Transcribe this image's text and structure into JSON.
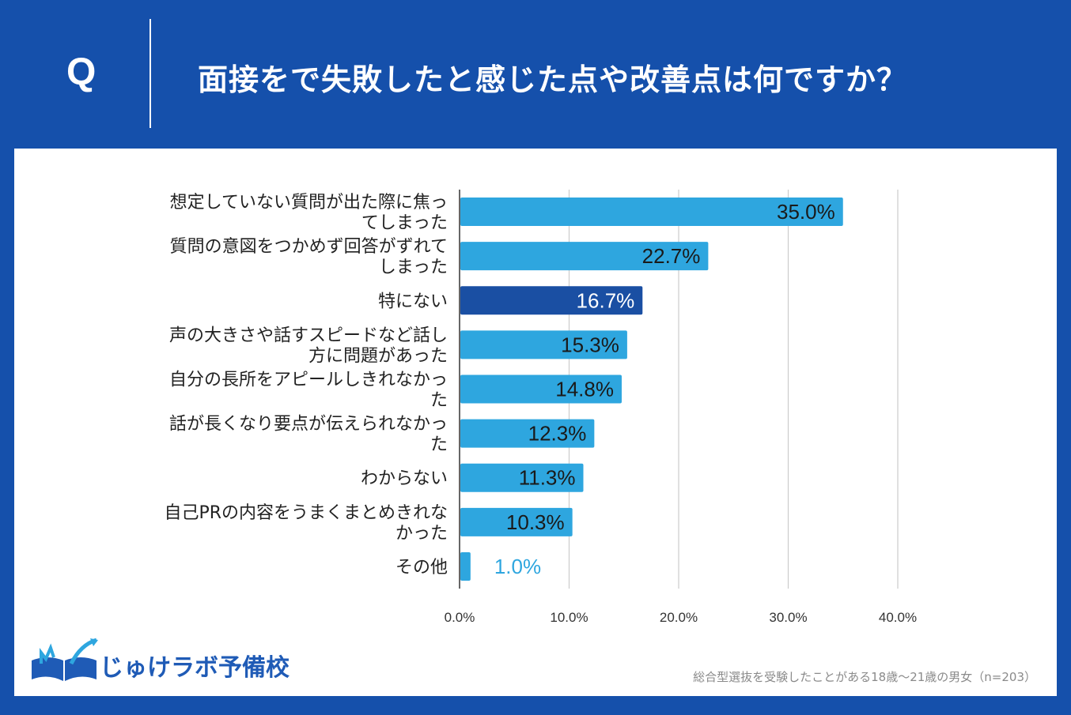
{
  "header": {
    "q_letter": "Q",
    "question": "面接をで失敗したと感じた点や改善点は何ですか？"
  },
  "colors": {
    "background": "#1550ab",
    "bar": "#2ea6df",
    "bar_highlight": "#1a4fa3",
    "outside_label": "#2ea6df"
  },
  "chart_data": {
    "type": "bar",
    "orientation": "horizontal",
    "categories": [
      [
        "想定していない質問が出た際に焦っ",
        "てしまった"
      ],
      [
        "質問の意図をつかめず回答がずれて",
        "しまった"
      ],
      [
        "特にない"
      ],
      [
        "声の大きさや話すスピードなど話し",
        "方に問題があった"
      ],
      [
        "自分の長所をアピールしきれなかっ",
        "た"
      ],
      [
        "話が長くなり要点が伝えられなかっ",
        "た"
      ],
      [
        "わからない"
      ],
      [
        "自己PRの内容をうまくまとめきれな",
        "かった"
      ],
      [
        "その他"
      ]
    ],
    "values": [
      35.0,
      22.7,
      16.7,
      15.3,
      14.8,
      12.3,
      11.3,
      10.3,
      1.0
    ],
    "value_labels": [
      "35.0%",
      "22.7%",
      "16.7%",
      "15.3%",
      "14.8%",
      "12.3%",
      "11.3%",
      "10.3%",
      "1.0%"
    ],
    "highlight_index": 2,
    "xlim": [
      0,
      40
    ],
    "xticks": [
      0,
      10,
      20,
      30,
      40
    ],
    "xtick_labels": [
      "0.0%",
      "10.0%",
      "20.0%",
      "30.0%",
      "40.0%"
    ],
    "grid": true
  },
  "brand": {
    "name": "じゅけラボ予備校",
    "icon": "open-book-logo-icon"
  },
  "footnote": "総合型選抜を受験したことがある18歳～21歳の男女（n=203）"
}
